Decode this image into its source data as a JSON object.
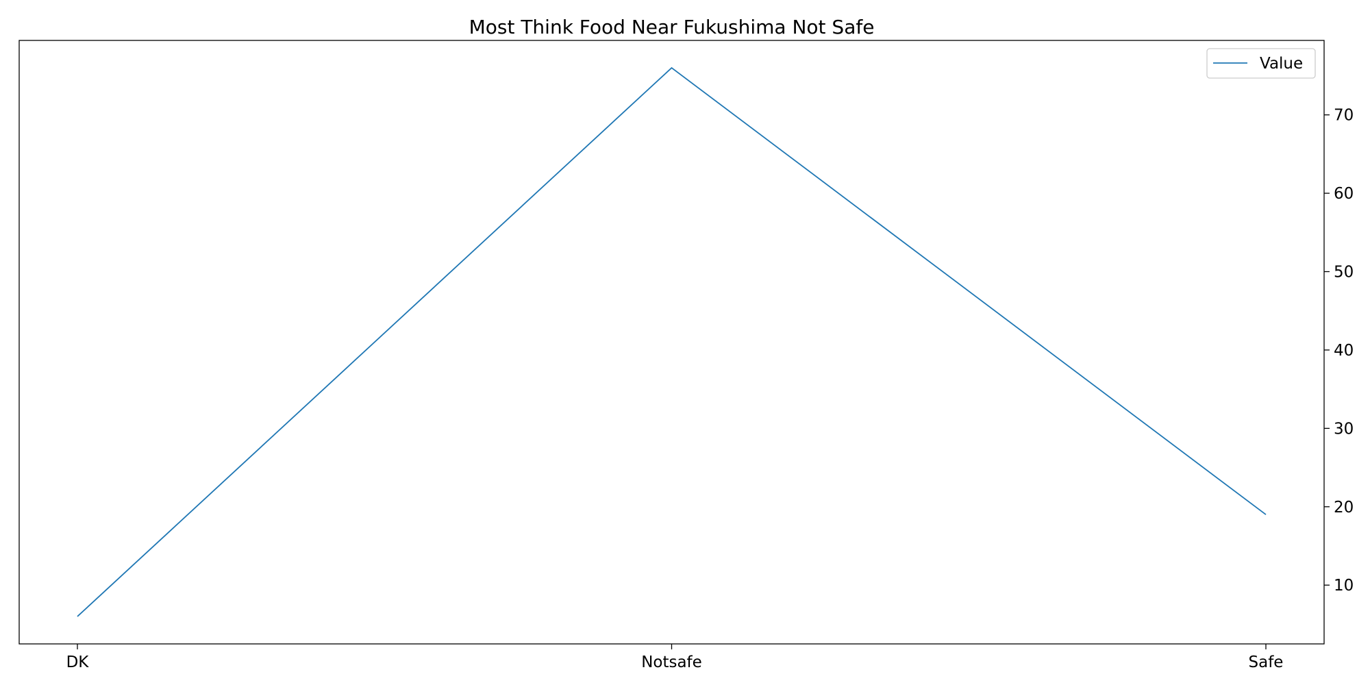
{
  "chart_data": {
    "type": "line",
    "title": "Most Think Food Near Fukushima Not Safe",
    "xlabel": "",
    "ylabel": "",
    "categories": [
      "DK",
      "Notsafe",
      "Safe"
    ],
    "series": [
      {
        "name": "Value",
        "values": [
          6,
          76,
          19
        ],
        "color": "#1f77b4"
      }
    ],
    "ylim": [
      2.5,
      79.5
    ],
    "yticks": [
      10,
      20,
      30,
      40,
      50,
      60,
      70
    ],
    "y_axis_side": "right",
    "grid": false,
    "legend_position": "top-right"
  }
}
